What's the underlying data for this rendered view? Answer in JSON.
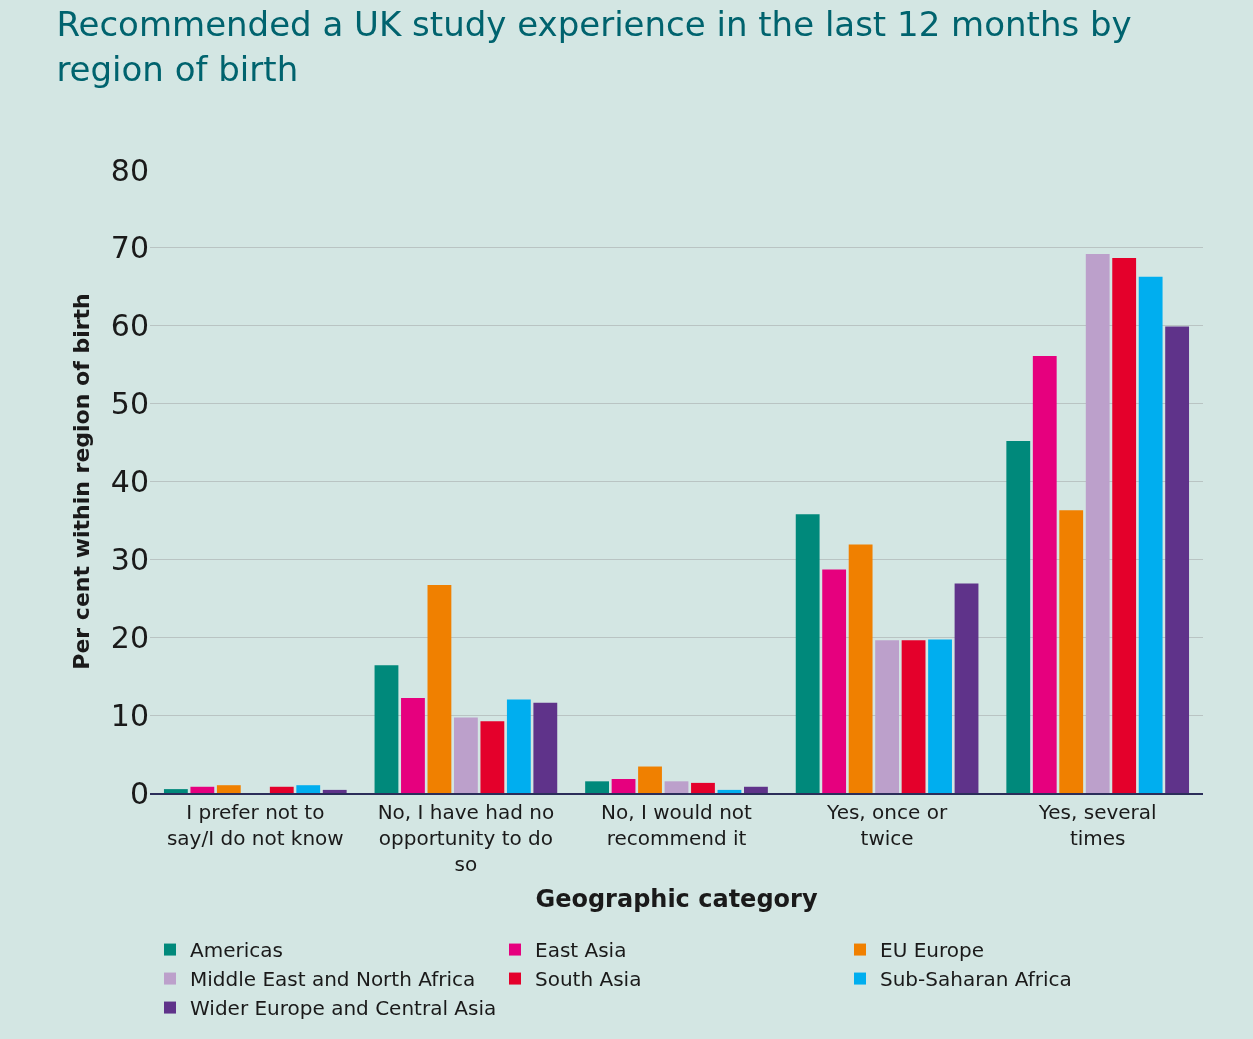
{
  "chart_data": {
    "type": "bar",
    "title": "Recommended a UK study experience in the last 12 months by region of birth",
    "xlabel": "Geographic category",
    "ylabel": "Per cent within region of birth",
    "categories": [
      "I prefer not to say/I do not know",
      "No, I have had no opportunity to do so",
      "No, I would not recommend it",
      "Yes, once or twice",
      "Yes, several times"
    ],
    "series": [
      {
        "name": "Americas",
        "color": "#00897b",
        "values": [
          0.5,
          16.4,
          1.5,
          35.8,
          45.2
        ]
      },
      {
        "name": "East Asia",
        "color": "#e6007e",
        "values": [
          0.8,
          12.2,
          1.8,
          28.7,
          56.1
        ]
      },
      {
        "name": "EU Europe",
        "color": "#f08000",
        "values": [
          1.0,
          26.7,
          3.4,
          31.9,
          36.3
        ]
      },
      {
        "name": "Middle East and North Africa",
        "color": "#bca0cb",
        "values": [
          0,
          9.7,
          1.5,
          19.6,
          69.2
        ]
      },
      {
        "name": "South Asia",
        "color": "#e4002b",
        "values": [
          0.8,
          9.2,
          1.3,
          19.6,
          68.7
        ]
      },
      {
        "name": "Sub-Saharan Africa",
        "color": "#00aeef",
        "values": [
          1.0,
          12.0,
          0.4,
          19.7,
          66.3
        ]
      },
      {
        "name": "Wider Europe and Central Asia",
        "color": "#5f338a",
        "values": [
          0.4,
          11.6,
          0.8,
          26.9,
          59.9
        ]
      }
    ],
    "ylim": [
      0,
      80
    ],
    "yticks": [
      0,
      10,
      20,
      30,
      40,
      50,
      60,
      70,
      80
    ],
    "grid": "y",
    "legend": "bottom"
  }
}
